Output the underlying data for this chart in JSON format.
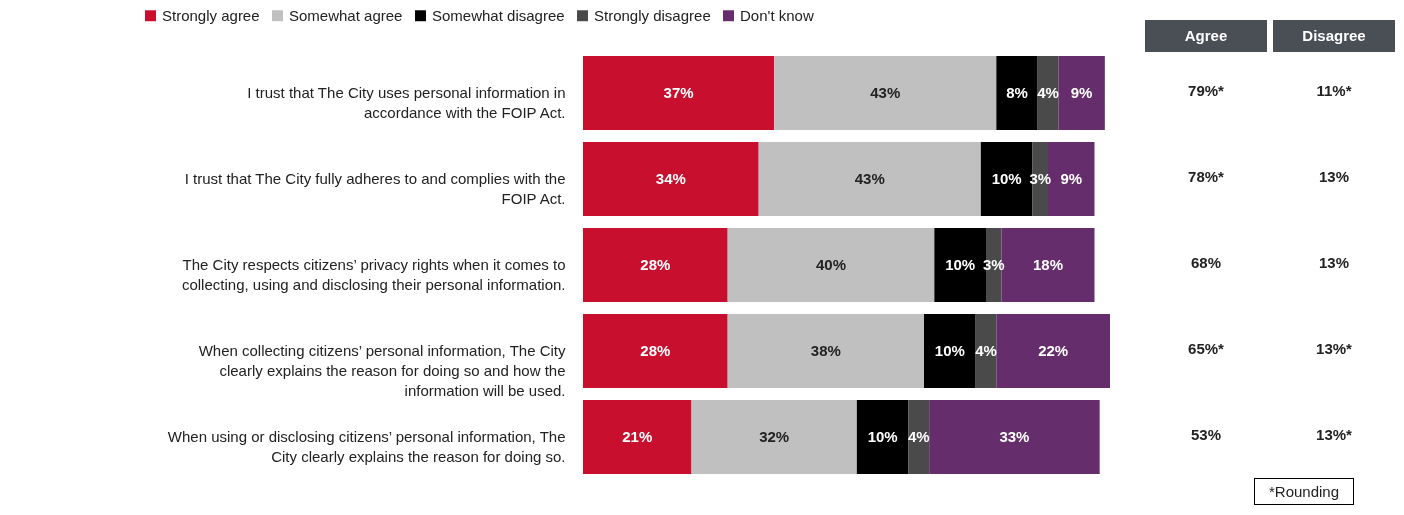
{
  "chart_data": {
    "type": "bar",
    "orientation": "horizontal",
    "stacked": true,
    "legend": "top",
    "categories": [
      "I trust that The City uses personal information in accordance with the FOIP Act.",
      "I trust that The City fully adheres to and complies with the FOIP Act.",
      "The City respects citizens’ privacy rights when it comes to collecting, using and disclosing their personal information.",
      "When collecting citizens’ personal information, The City clearly explains the reason for doing so and how the information will be used.",
      "When using or disclosing citizens’ personal information, The City clearly explains the reason for doing so."
    ],
    "series": [
      {
        "name": "Strongly agree",
        "color": "#c8102e",
        "values": [
          37,
          34,
          28,
          28,
          21
        ],
        "value_labels": [
          "37%",
          "34%",
          "28%",
          "28%",
          "21%"
        ]
      },
      {
        "name": "Somewhat agree",
        "color": "#c0c0c0",
        "values": [
          43,
          43,
          40,
          38,
          32
        ],
        "value_labels": [
          "43%",
          "43%",
          "40%",
          "38%",
          "32%"
        ]
      },
      {
        "name": "Somewhat disagree",
        "color": "#000000",
        "values": [
          8,
          10,
          10,
          10,
          10
        ],
        "value_labels": [
          "8%",
          "10%",
          "10%",
          "10%",
          "10%"
        ]
      },
      {
        "name": "Strongly disagree",
        "color": "#4a4a4a",
        "values": [
          4,
          3,
          3,
          4,
          4
        ],
        "value_labels": [
          "4%",
          "3%",
          "3%",
          "4%",
          "4%"
        ]
      },
      {
        "name": "Don't know",
        "color": "#652d6b",
        "values": [
          9,
          9,
          18,
          22,
          33
        ],
        "value_labels": [
          "9%",
          "9%",
          "18%",
          "22%",
          "33%"
        ]
      }
    ],
    "annotations": [
      "Agree",
      "Disagree",
      "79%*",
      "11%*",
      "78%*",
      "13%",
      "68%",
      "13%",
      "65%*",
      "13%*",
      "53%",
      "13%*",
      "*Rounding"
    ]
  }
}
